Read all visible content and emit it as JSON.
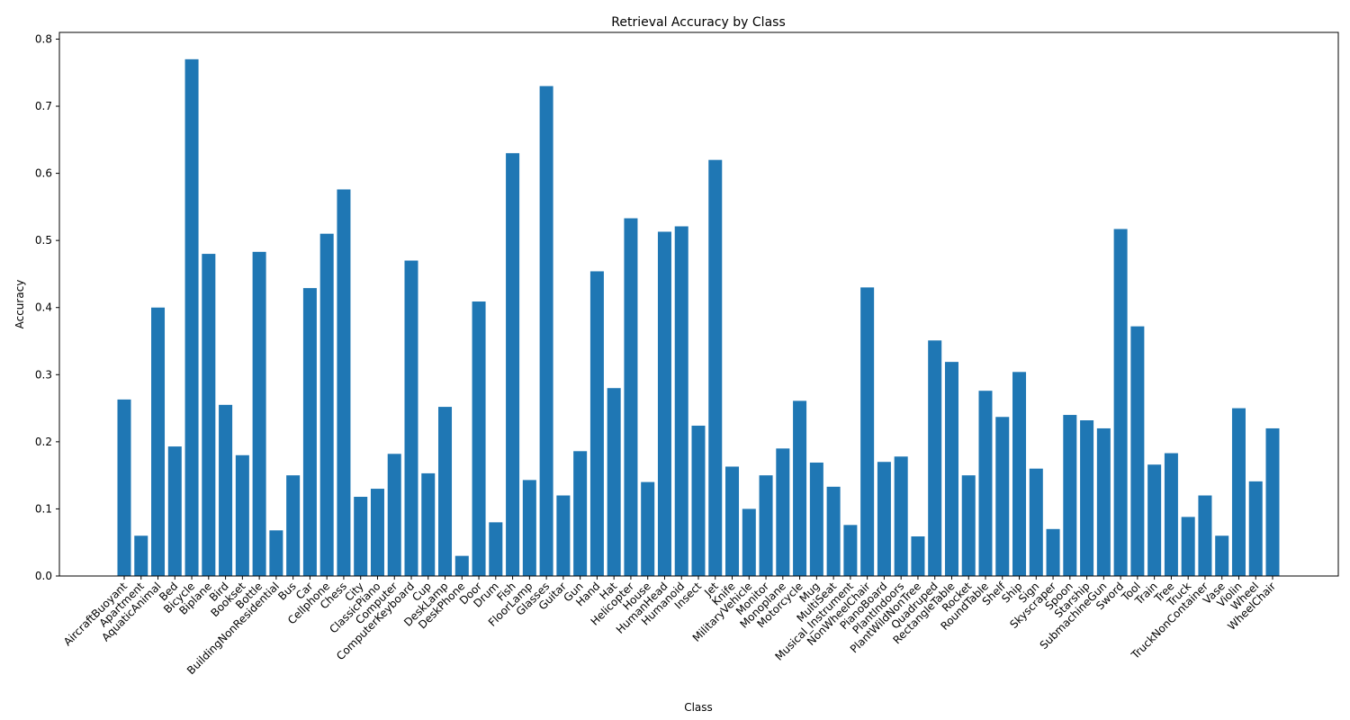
{
  "chart_data": {
    "type": "bar",
    "title": "Retrieval Accuracy by Class",
    "xlabel": "Class",
    "ylabel": "Accuracy",
    "ylim": [
      0,
      0.81
    ],
    "yticks": [
      0.0,
      0.1,
      0.2,
      0.3,
      0.4,
      0.5,
      0.6,
      0.7,
      0.8
    ],
    "ytick_labels": [
      "0.0",
      "0.1",
      "0.2",
      "0.3",
      "0.4",
      "0.5",
      "0.6",
      "0.7",
      "0.8"
    ],
    "bar_color": "#1f77b4",
    "grid": false,
    "categories": [
      "AircraftBuoyant",
      "Apartment",
      "AquaticAnimal",
      "Bed",
      "Bicycle",
      "Biplane",
      "Bird",
      "Bookset",
      "Bottle",
      "BuildingNonResidential",
      "Bus",
      "Car",
      "Cellphone",
      "Chess",
      "City",
      "ClassicPiano",
      "Computer",
      "ComputerKeyboard",
      "Cup",
      "DeskLamp",
      "DeskPhone",
      "Door",
      "Drum",
      "Fish",
      "FloorLamp",
      "Glasses",
      "Guitar",
      "Gun",
      "Hand",
      "Hat",
      "Helicopter",
      "House",
      "HumanHead",
      "Humanoid",
      "Insect",
      "Jet",
      "Knife",
      "MilitaryVehicle",
      "Monitor",
      "Monoplane",
      "Motorcycle",
      "Mug",
      "MultiSeat",
      "Musical_Instrument",
      "NonWheelChair",
      "PianoBoard",
      "PlantIndoors",
      "PlantWildNonTree",
      "Quadruped",
      "RectangleTable",
      "Rocket",
      "RoundTable",
      "Shelf",
      "Ship",
      "Sign",
      "Skyscraper",
      "Spoon",
      "Starship",
      "SubmachineGun",
      "Sword",
      "Tool",
      "Train",
      "Tree",
      "Truck",
      "TruckNonContainer",
      "Vase",
      "Violin",
      "Wheel",
      "WheelChair"
    ],
    "values": [
      0.263,
      0.06,
      0.4,
      0.193,
      0.77,
      0.48,
      0.255,
      0.18,
      0.483,
      0.068,
      0.15,
      0.429,
      0.51,
      0.576,
      0.118,
      0.13,
      0.182,
      0.47,
      0.153,
      0.252,
      0.03,
      0.409,
      0.08,
      0.63,
      0.143,
      0.73,
      0.12,
      0.186,
      0.454,
      0.28,
      0.533,
      0.14,
      0.513,
      0.521,
      0.224,
      0.62,
      0.163,
      0.1,
      0.15,
      0.19,
      0.261,
      0.169,
      0.133,
      0.076,
      0.43,
      0.17,
      0.178,
      0.059,
      0.351,
      0.319,
      0.15,
      0.276,
      0.237,
      0.304,
      0.16,
      0.07,
      0.24,
      0.232,
      0.22,
      0.517,
      0.372,
      0.166,
      0.183,
      0.088,
      0.12,
      0.06,
      0.25,
      0.141,
      0.22
    ]
  }
}
